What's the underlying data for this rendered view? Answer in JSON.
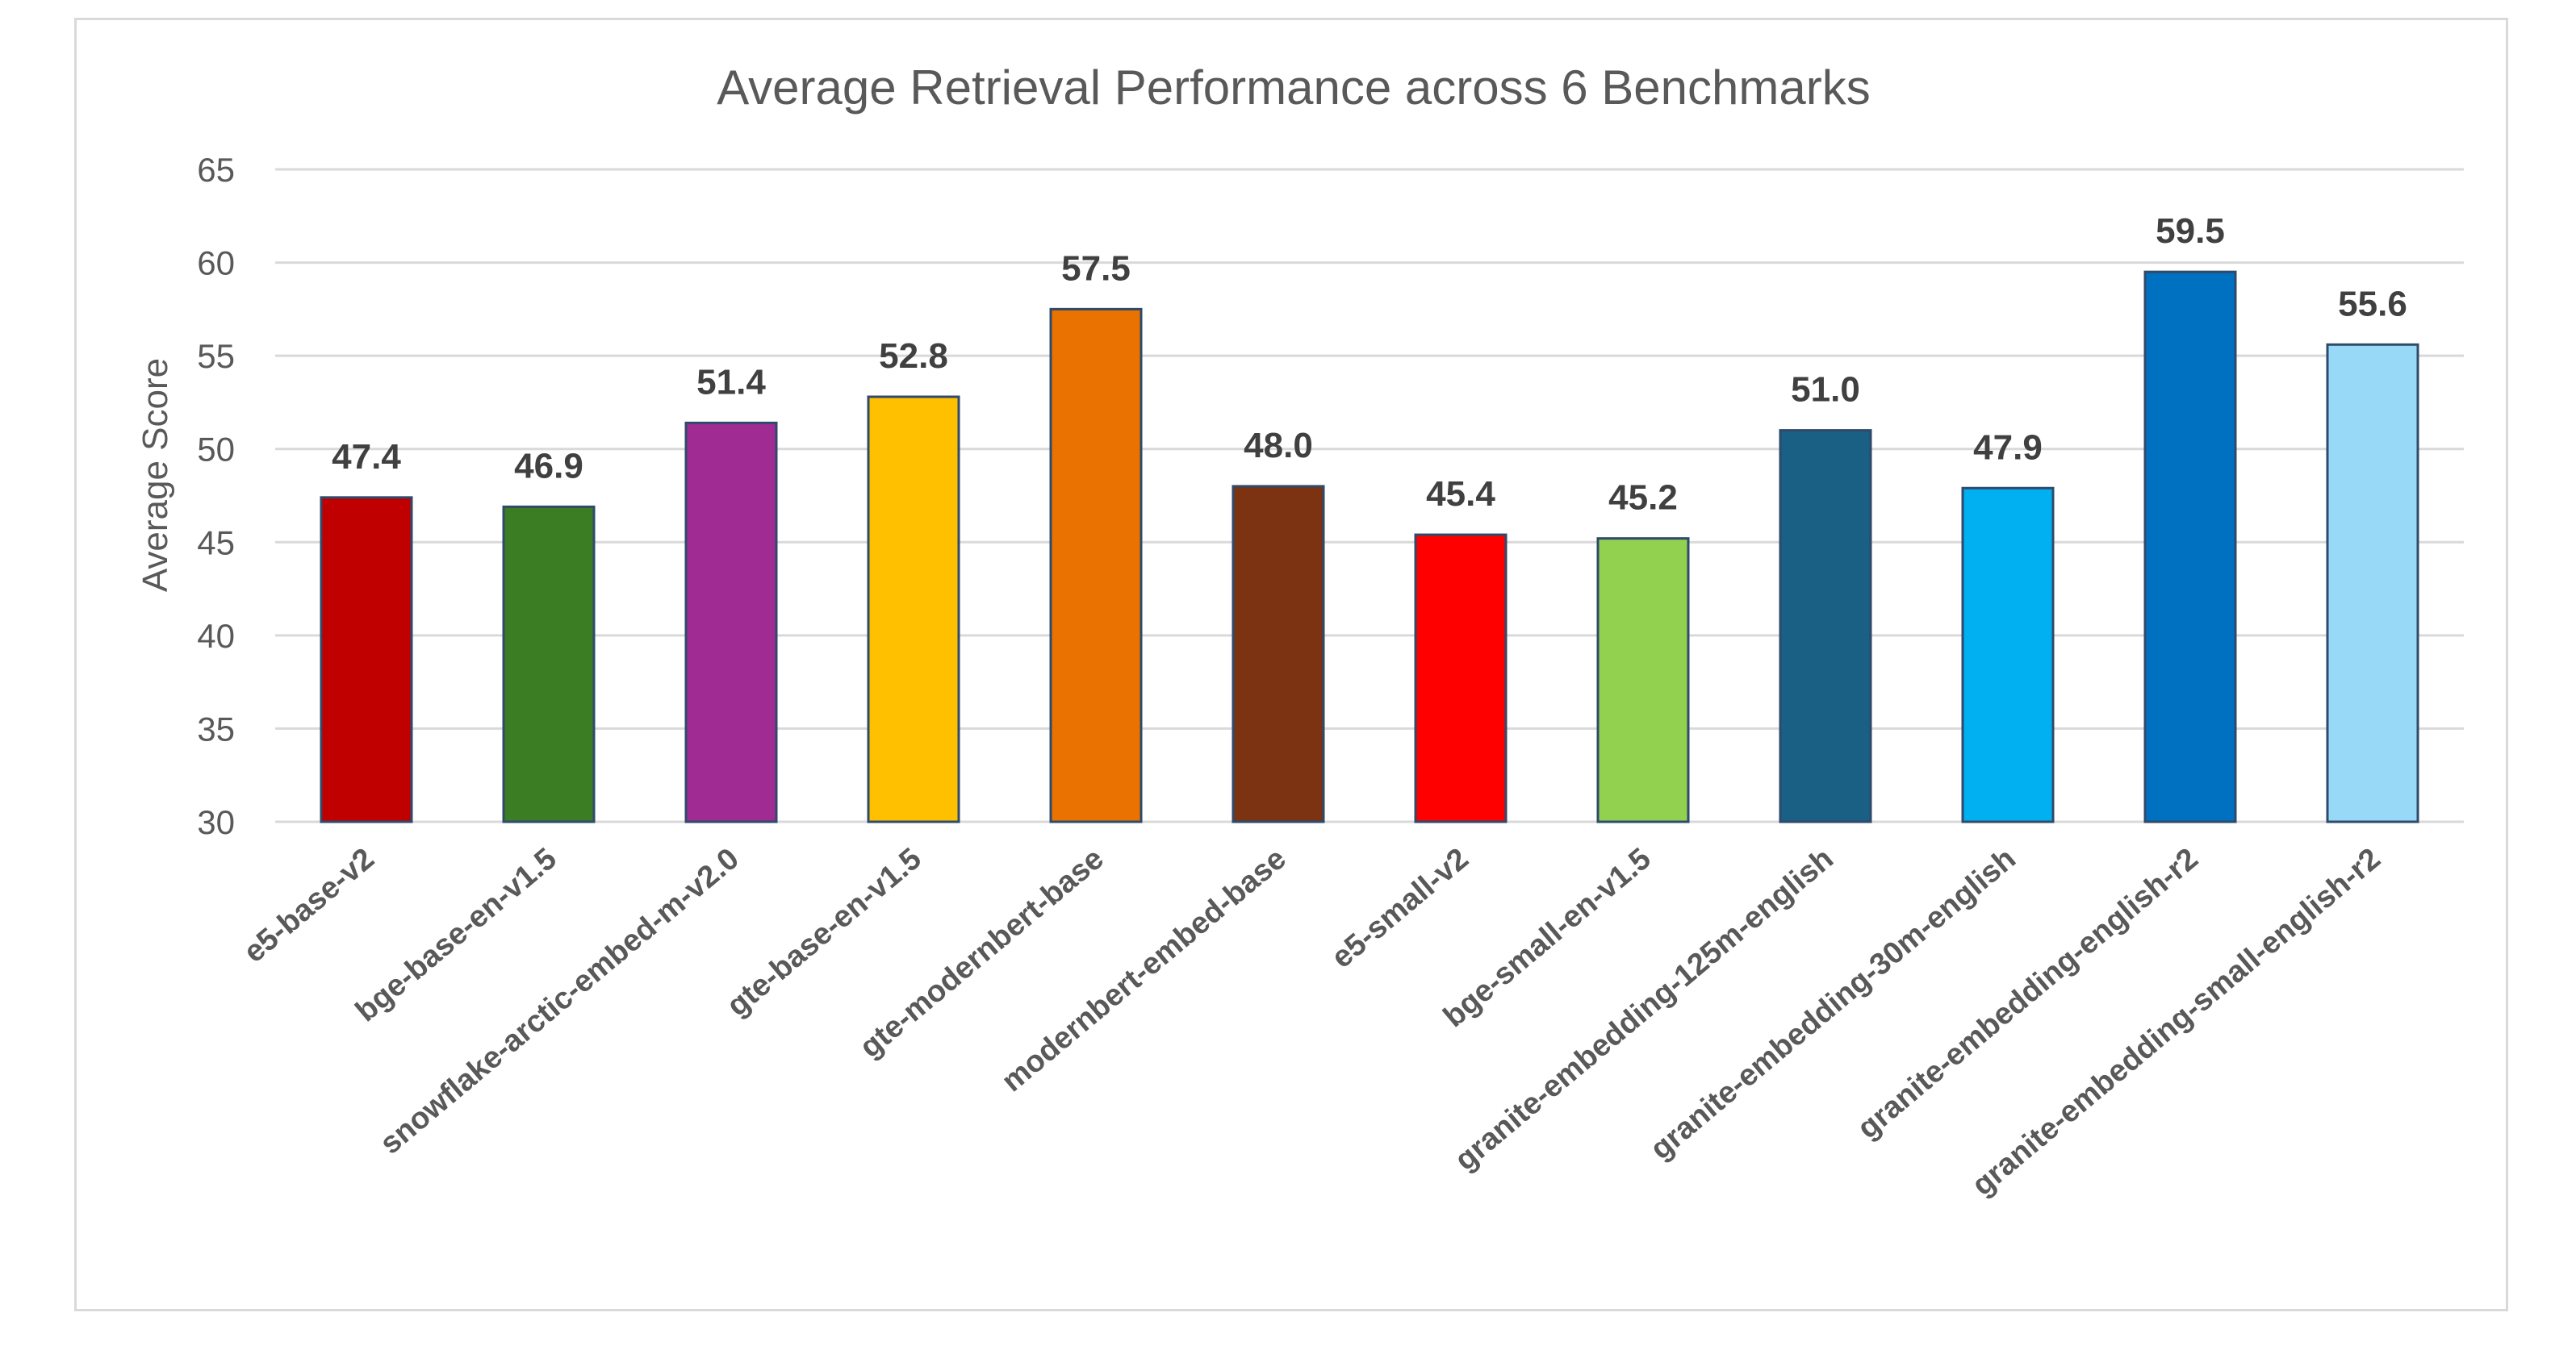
{
  "chart_data": {
    "type": "bar",
    "title": "Average Retrieval Performance across 6 Benchmarks",
    "xlabel": "",
    "ylabel": "Average Score",
    "ylim": [
      30,
      65
    ],
    "yticks": [
      30,
      35,
      40,
      45,
      50,
      55,
      60,
      65
    ],
    "grid": true,
    "legend": "none",
    "categories": [
      "e5-base-v2",
      "bge-base-en-v1.5",
      "snowflake-arctic-embed-m-v2.0",
      "gte-base-en-v1.5",
      "gte-modernbert-base",
      "modernbert-embed-base",
      "e5-small-v2",
      "bge-small-en-v1.5",
      "granite-embedding-125m-english",
      "granite-embedding-30m-english",
      "granite-embedding-english-r2",
      "granite-embedding-small-english-r2"
    ],
    "values": [
      47.4,
      46.9,
      51.4,
      52.8,
      57.5,
      48.0,
      45.4,
      45.2,
      51.0,
      47.9,
      59.5,
      55.6
    ],
    "data_labels": [
      "47.4",
      "46.9",
      "51.4",
      "52.8",
      "57.5",
      "48.0",
      "45.4",
      "45.2",
      "51.0",
      "47.9",
      "59.5",
      "55.6"
    ],
    "colors": [
      "#c00000",
      "#3a7d22",
      "#a02b93",
      "#ffc000",
      "#e97200",
      "#7b3311",
      "#ff0000",
      "#92d050",
      "#1a5f84",
      "#00b0f0",
      "#0070c0",
      "#97d9f7"
    ]
  }
}
